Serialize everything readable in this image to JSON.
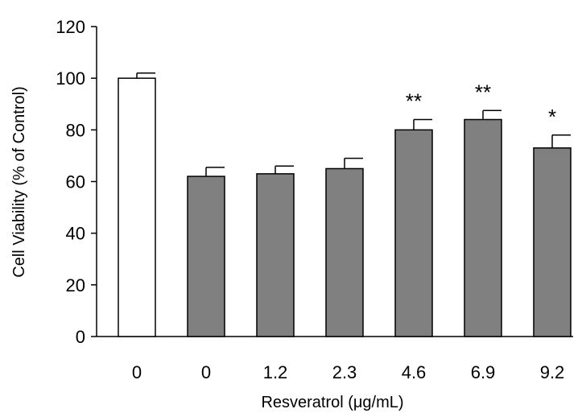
{
  "chart_data": {
    "type": "bar",
    "title": "",
    "xlabel": "Resveratrol (μg/mL)",
    "ylabel": "Cell Viability (% of Control)",
    "ylim": [
      0,
      120
    ],
    "yticks": [
      "0",
      "20",
      "40",
      "60",
      "80",
      "100",
      "120"
    ],
    "categories": [
      "0",
      "0",
      "1.2",
      "2.3",
      "4.6",
      "6.9",
      "9.2"
    ],
    "values": [
      100,
      62,
      63,
      65,
      80,
      84,
      73
    ],
    "errors": [
      2,
      3.5,
      3,
      4,
      4,
      3.5,
      5
    ],
    "annotations": [
      "",
      "",
      "",
      "",
      "**",
      "**",
      "*"
    ],
    "colors": [
      "#ffffff",
      "#808080",
      "#808080",
      "#808080",
      "#808080",
      "#808080",
      "#808080"
    ],
    "grid": false,
    "legend": "none"
  }
}
